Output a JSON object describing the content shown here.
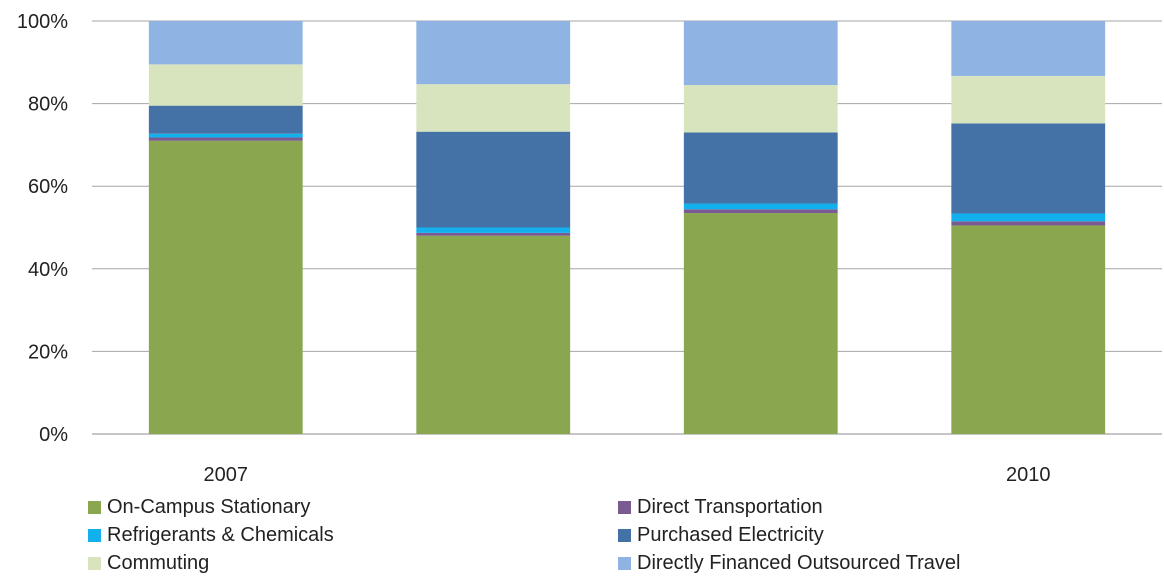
{
  "chart_data": {
    "type": "bar",
    "stacked": true,
    "percent": true,
    "title": "",
    "xlabel": "",
    "ylabel": "",
    "ylim": [
      0,
      100
    ],
    "yticks": [
      "0%",
      "20%",
      "40%",
      "60%",
      "80%",
      "100%"
    ],
    "categories": [
      "2007",
      "",
      "",
      "2010"
    ],
    "grid": true,
    "legend": "bottom",
    "series": [
      {
        "name": "On-Campus Stationary",
        "color": "#8aa64f",
        "values": [
          71,
          48,
          53.5,
          50.5
        ]
      },
      {
        "name": "Direct Transportation",
        "color": "#7a5b91",
        "values": [
          0.8,
          0.7,
          0.9,
          1.0
        ]
      },
      {
        "name": "Refrigerants & Chemicals",
        "color": "#13b0ee",
        "values": [
          0.9,
          1.3,
          1.4,
          1.9
        ]
      },
      {
        "name": "Purchased Electricity",
        "color": "#4472a6",
        "values": [
          6.8,
          23.2,
          17.2,
          21.8
        ]
      },
      {
        "name": "Commuting",
        "color": "#d7e4bd",
        "values": [
          10,
          11.5,
          11.5,
          11.5
        ]
      },
      {
        "name": "Directly Financed Outsourced Travel",
        "color": "#8fb3e2",
        "values": [
          10.5,
          15.3,
          15.5,
          13.3
        ]
      }
    ]
  }
}
